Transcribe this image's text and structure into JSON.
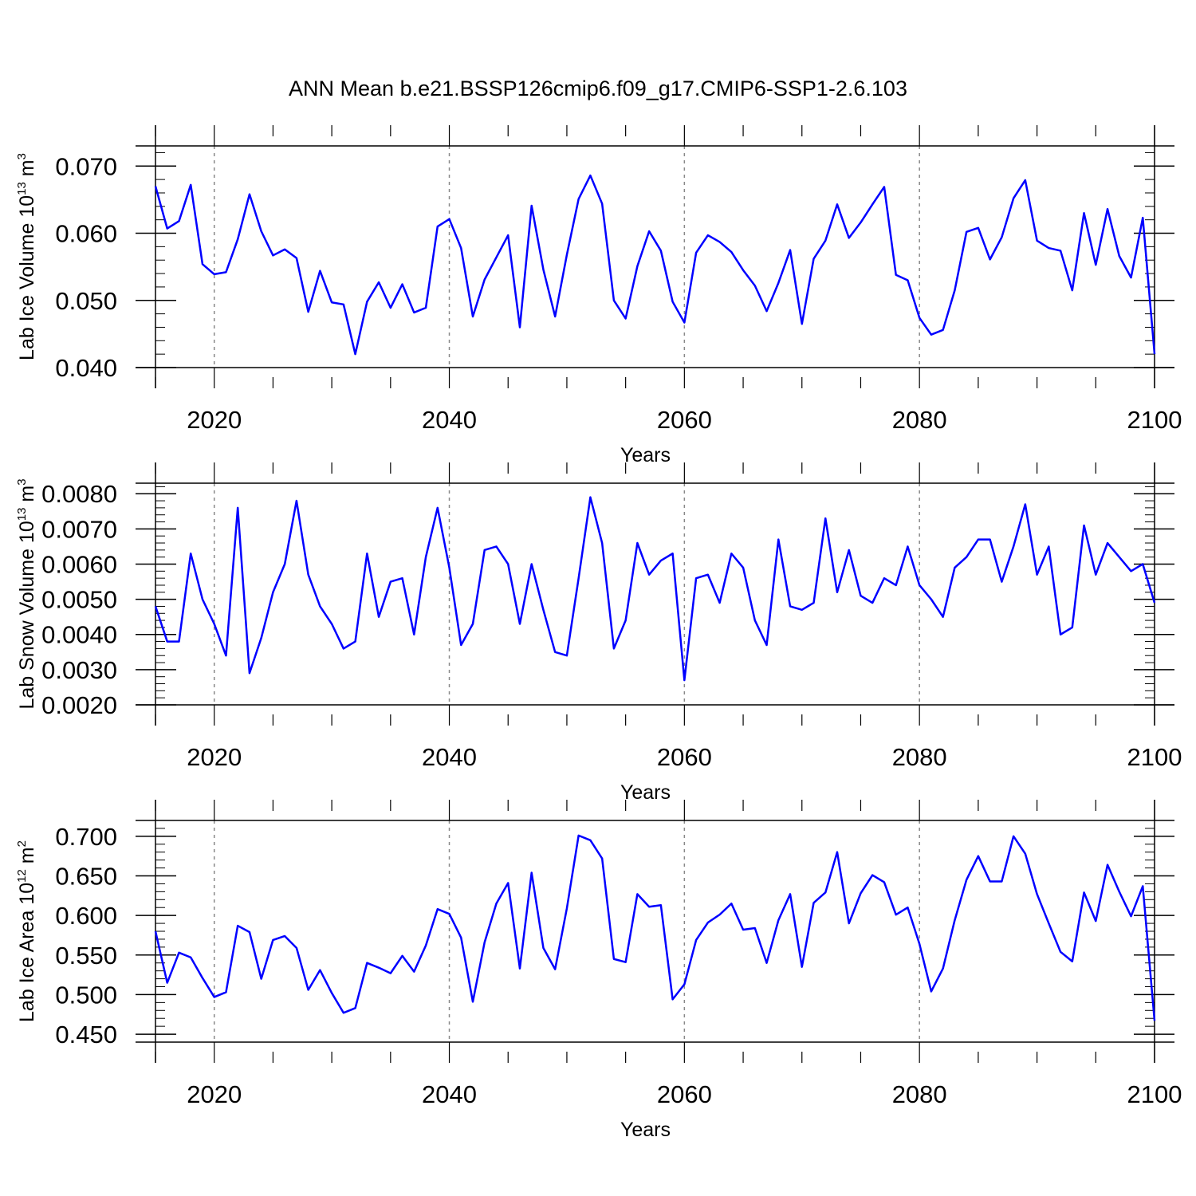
{
  "title": "ANN Mean b.e21.BSSP126cmip6.f09_g17.CMIP6-SSP1-2.6.103",
  "line_color": "#0000ff",
  "chart_data": [
    {
      "type": "line",
      "ylabel_main": "Lab Ice Volume 10",
      "ylabel_exp": "13",
      "ylabel_unit": " m",
      "ylabel_unit_exp": "3",
      "xlabel": "Years",
      "xlim": [
        2015,
        2100
      ],
      "ylim": [
        0.04,
        0.073
      ],
      "x_ticks": [
        2020,
        2040,
        2060,
        2080,
        2100
      ],
      "y_ticks": [
        0.04,
        0.05,
        0.06,
        0.07
      ],
      "y_tick_labels": [
        "0.040",
        "0.050",
        "0.060",
        "0.070"
      ],
      "y_minor_step": 0.002,
      "x_start": 2015,
      "values": [
        0.067,
        0.0607,
        0.0618,
        0.0672,
        0.0554,
        0.0539,
        0.0542,
        0.0591,
        0.0658,
        0.0603,
        0.0567,
        0.0576,
        0.0563,
        0.0483,
        0.0544,
        0.0497,
        0.0494,
        0.042,
        0.0498,
        0.0527,
        0.0489,
        0.0524,
        0.0482,
        0.0489,
        0.061,
        0.0621,
        0.0578,
        0.0476,
        0.0531,
        0.0564,
        0.0597,
        0.046,
        0.0641,
        0.0546,
        0.0476,
        0.0568,
        0.0651,
        0.0686,
        0.0644,
        0.05,
        0.0473,
        0.0551,
        0.0603,
        0.0574,
        0.0498,
        0.0467,
        0.0571,
        0.0597,
        0.0587,
        0.0572,
        0.0545,
        0.0522,
        0.0484,
        0.0526,
        0.0575,
        0.0465,
        0.0562,
        0.0589,
        0.0643,
        0.0593,
        0.0616,
        0.0643,
        0.0669,
        0.0538,
        0.053,
        0.0474,
        0.0449,
        0.0456,
        0.0515,
        0.0602,
        0.0608,
        0.0561,
        0.0594,
        0.0652,
        0.0679,
        0.0589,
        0.0578,
        0.0574,
        0.0515,
        0.063,
        0.0553,
        0.0636,
        0.0566,
        0.0534,
        0.0623,
        0.042
      ]
    },
    {
      "type": "line",
      "ylabel_main": "Lab Snow Volume 10",
      "ylabel_exp": "13",
      "ylabel_unit": " m",
      "ylabel_unit_exp": "3",
      "xlabel": "Years",
      "xlim": [
        2015,
        2100
      ],
      "ylim": [
        0.002,
        0.0083
      ],
      "x_ticks": [
        2020,
        2040,
        2060,
        2080,
        2100
      ],
      "y_ticks": [
        0.002,
        0.003,
        0.004,
        0.005,
        0.006,
        0.007,
        0.008
      ],
      "y_tick_labels": [
        "0.0020",
        "0.0030",
        "0.0040",
        "0.0050",
        "0.0060",
        "0.0070",
        "0.0080"
      ],
      "y_minor_step": 0.0002,
      "x_start": 2015,
      "values": [
        0.0048,
        0.0038,
        0.0038,
        0.0063,
        0.005,
        0.0043,
        0.0034,
        0.0076,
        0.0029,
        0.0039,
        0.0052,
        0.006,
        0.0078,
        0.0057,
        0.0048,
        0.0043,
        0.0036,
        0.0038,
        0.0063,
        0.0045,
        0.0055,
        0.0056,
        0.004,
        0.0062,
        0.0076,
        0.0059,
        0.0037,
        0.0043,
        0.0064,
        0.0065,
        0.006,
        0.0043,
        0.006,
        0.0047,
        0.0035,
        0.0034,
        0.0056,
        0.0079,
        0.0066,
        0.0036,
        0.0044,
        0.0066,
        0.0057,
        0.0061,
        0.0063,
        0.0027,
        0.0056,
        0.0057,
        0.0049,
        0.0063,
        0.0059,
        0.0044,
        0.0037,
        0.0067,
        0.0048,
        0.0047,
        0.0049,
        0.0073,
        0.0052,
        0.0064,
        0.0051,
        0.0049,
        0.0056,
        0.0054,
        0.0065,
        0.0054,
        0.005,
        0.0045,
        0.0059,
        0.0062,
        0.0067,
        0.0067,
        0.0055,
        0.0065,
        0.0077,
        0.0057,
        0.0065,
        0.004,
        0.0042,
        0.0071,
        0.0057,
        0.0066,
        0.0062,
        0.0058,
        0.006,
        0.0049
      ]
    },
    {
      "type": "line",
      "ylabel_main": "Lab Ice Area 10",
      "ylabel_exp": "12",
      "ylabel_unit": " m",
      "ylabel_unit_exp": "2",
      "xlabel": "Years",
      "xlim": [
        2015,
        2100
      ],
      "ylim": [
        0.44,
        0.72
      ],
      "x_ticks": [
        2020,
        2040,
        2060,
        2080,
        2100
      ],
      "y_ticks": [
        0.45,
        0.5,
        0.55,
        0.6,
        0.65,
        0.7
      ],
      "y_tick_labels": [
        "0.450",
        "0.500",
        "0.550",
        "0.600",
        "0.650",
        "0.700"
      ],
      "y_minor_step": 0.01,
      "x_start": 2015,
      "values": [
        0.58,
        0.515,
        0.553,
        0.547,
        0.521,
        0.497,
        0.503,
        0.587,
        0.579,
        0.52,
        0.569,
        0.574,
        0.559,
        0.506,
        0.531,
        0.502,
        0.477,
        0.483,
        0.54,
        0.534,
        0.527,
        0.549,
        0.529,
        0.562,
        0.608,
        0.602,
        0.572,
        0.491,
        0.566,
        0.615,
        0.641,
        0.533,
        0.654,
        0.559,
        0.532,
        0.609,
        0.701,
        0.695,
        0.672,
        0.545,
        0.541,
        0.627,
        0.611,
        0.613,
        0.494,
        0.513,
        0.569,
        0.591,
        0.601,
        0.615,
        0.582,
        0.584,
        0.54,
        0.594,
        0.627,
        0.535,
        0.616,
        0.629,
        0.68,
        0.59,
        0.628,
        0.651,
        0.642,
        0.601,
        0.61,
        0.564,
        0.504,
        0.533,
        0.594,
        0.645,
        0.675,
        0.643,
        0.643,
        0.7,
        0.678,
        0.627,
        0.59,
        0.554,
        0.542,
        0.629,
        0.593,
        0.664,
        0.63,
        0.599,
        0.637,
        0.467
      ]
    }
  ]
}
